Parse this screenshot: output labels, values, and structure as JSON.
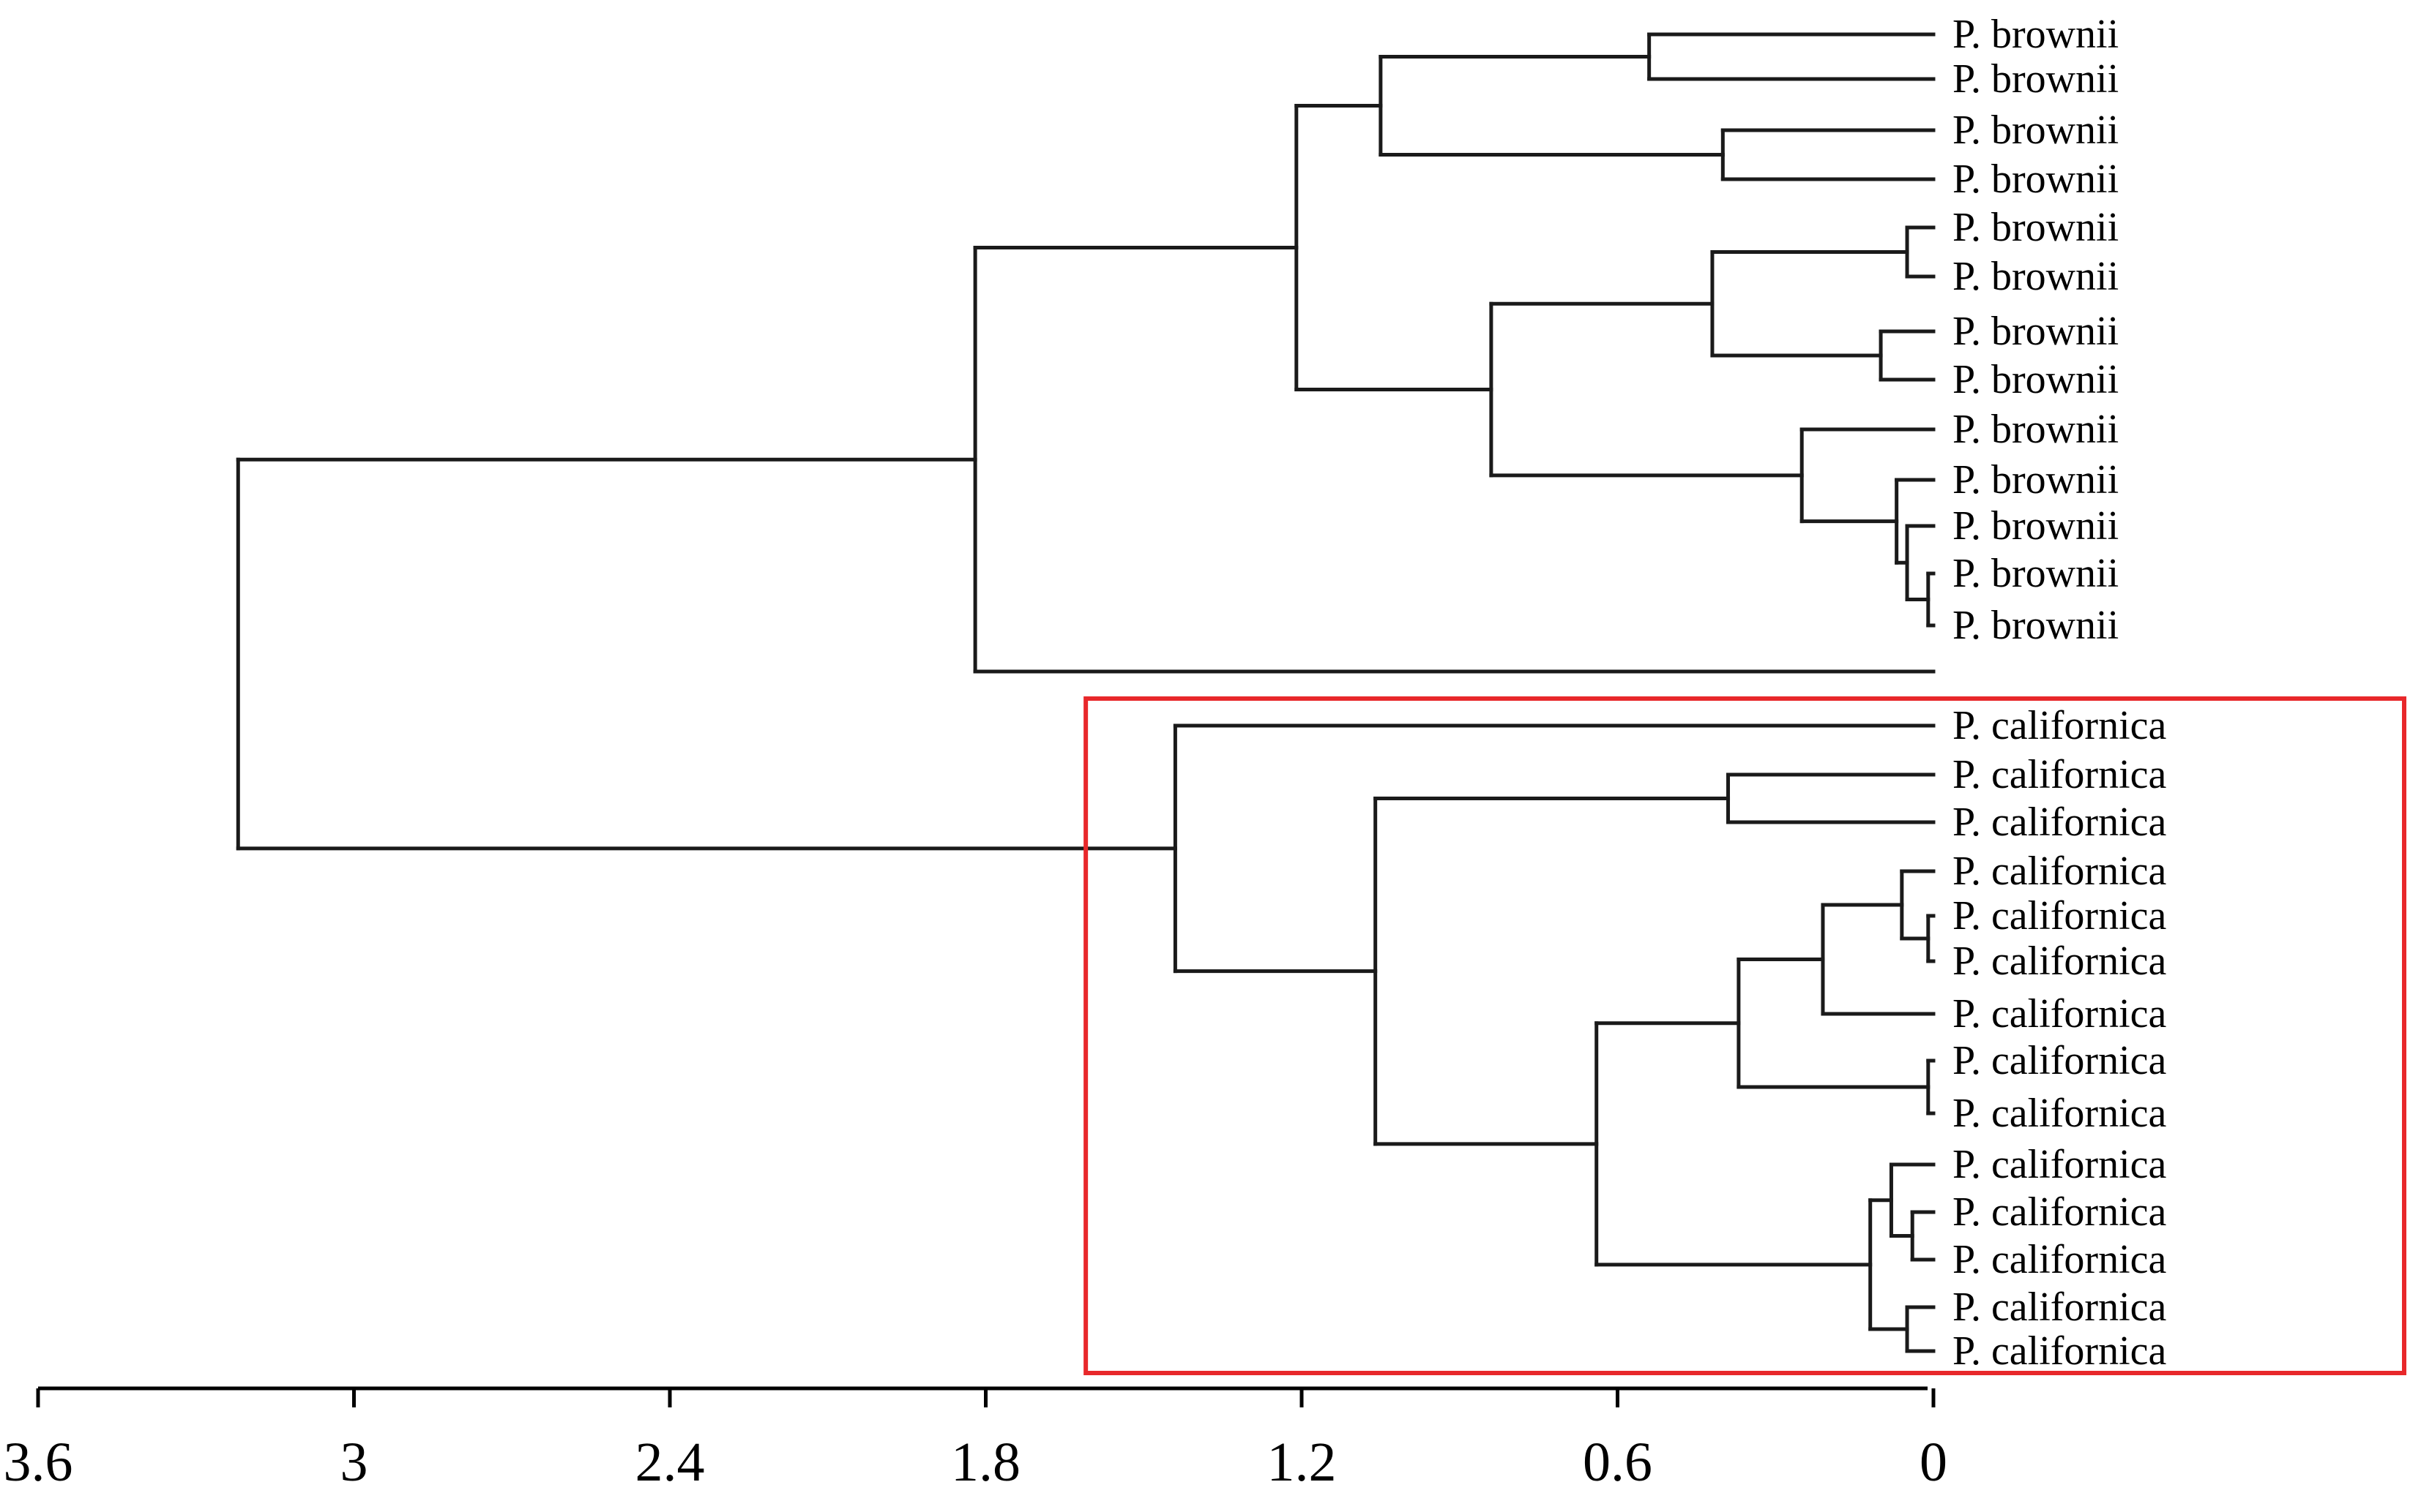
{
  "chart_data": {
    "type": "dendrogram",
    "axis": {
      "ticks": [
        3.6,
        3,
        2.4,
        1.8,
        1.2,
        0.6,
        0
      ],
      "tick_labels": [
        "3.6",
        "3",
        "2.4",
        "1.8",
        "1.2",
        "0.6",
        "0"
      ],
      "range": [
        3.6,
        0
      ]
    },
    "leaves": [
      {
        "id": "b1",
        "label": "P. brownii"
      },
      {
        "id": "b2",
        "label": "P. brownii"
      },
      {
        "id": "b3",
        "label": "P. brownii"
      },
      {
        "id": "b4",
        "label": "P. brownii"
      },
      {
        "id": "b5",
        "label": "P. brownii"
      },
      {
        "id": "b6",
        "label": "P. brownii"
      },
      {
        "id": "b7",
        "label": "P. brownii"
      },
      {
        "id": "b8",
        "label": "P. brownii"
      },
      {
        "id": "b9",
        "label": "P. brownii"
      },
      {
        "id": "b10",
        "label": "P. brownii"
      },
      {
        "id": "b11",
        "label": "P. brownii"
      },
      {
        "id": "b12",
        "label": "P. brownii"
      },
      {
        "id": "b13",
        "label": "P. brownii"
      },
      {
        "id": "x14",
        "label": ""
      },
      {
        "id": "c1",
        "label": "P. californica"
      },
      {
        "id": "c2",
        "label": "P. californica"
      },
      {
        "id": "c3",
        "label": "P. californica"
      },
      {
        "id": "c4",
        "label": "P. californica"
      },
      {
        "id": "c5",
        "label": "P. californica"
      },
      {
        "id": "c6",
        "label": "P. californica"
      },
      {
        "id": "c7",
        "label": "P. californica"
      },
      {
        "id": "c8",
        "label": "P. californica"
      },
      {
        "id": "c9",
        "label": "P. californica"
      },
      {
        "id": "c10",
        "label": "P. californica"
      },
      {
        "id": "c11",
        "label": "P. californica"
      },
      {
        "id": "c12",
        "label": "P. californica"
      },
      {
        "id": "c13",
        "label": "P. californica"
      },
      {
        "id": "c14",
        "label": "P. californica"
      }
    ],
    "merges": [
      {
        "id": "n1",
        "height": 0.54,
        "children": [
          "b1",
          "b2"
        ]
      },
      {
        "id": "n2",
        "height": 0.4,
        "children": [
          "b3",
          "b4"
        ]
      },
      {
        "id": "n3",
        "height": 1.05,
        "children": [
          "n1",
          "n2"
        ]
      },
      {
        "id": "n4",
        "height": 0.05,
        "children": [
          "b5",
          "b6"
        ]
      },
      {
        "id": "n5",
        "height": 0.1,
        "children": [
          "b7",
          "b8"
        ]
      },
      {
        "id": "n6",
        "height": 0.42,
        "children": [
          "n4",
          "n5"
        ]
      },
      {
        "id": "n7",
        "height": 0.01,
        "children": [
          "b12",
          "b13"
        ]
      },
      {
        "id": "n8",
        "height": 0.05,
        "children": [
          "b11",
          "n7"
        ]
      },
      {
        "id": "n9",
        "height": 0.07,
        "children": [
          "b10",
          "n8"
        ]
      },
      {
        "id": "n10",
        "height": 0.25,
        "children": [
          "b9",
          "n9"
        ]
      },
      {
        "id": "n11",
        "height": 0.84,
        "children": [
          "n6",
          "n10"
        ]
      },
      {
        "id": "n12",
        "height": 1.21,
        "children": [
          "n3",
          "n11"
        ]
      },
      {
        "id": "n13",
        "height": 1.82,
        "children": [
          "n12",
          "x14"
        ]
      },
      {
        "id": "m1",
        "height": 0.39,
        "children": [
          "c2",
          "c3"
        ]
      },
      {
        "id": "m2",
        "height": 0.01,
        "children": [
          "c5",
          "c6"
        ]
      },
      {
        "id": "m3",
        "height": 0.06,
        "children": [
          "c4",
          "m2"
        ]
      },
      {
        "id": "m4",
        "height": 0.21,
        "children": [
          "m3",
          "c7"
        ]
      },
      {
        "id": "m5",
        "height": 0.01,
        "children": [
          "c8",
          "c9"
        ]
      },
      {
        "id": "m6",
        "height": 0.37,
        "children": [
          "m4",
          "m5"
        ]
      },
      {
        "id": "m7",
        "height": 0.04,
        "children": [
          "c11",
          "c12"
        ]
      },
      {
        "id": "m8",
        "height": 0.08,
        "children": [
          "c10",
          "m7"
        ]
      },
      {
        "id": "m9",
        "height": 0.05,
        "children": [
          "c13",
          "c14"
        ]
      },
      {
        "id": "m10",
        "height": 0.12,
        "children": [
          "m8",
          "m9"
        ]
      },
      {
        "id": "m11",
        "height": 0.64,
        "children": [
          "m6",
          "m10"
        ]
      },
      {
        "id": "m12",
        "height": 1.06,
        "children": [
          "m1",
          "m11"
        ]
      },
      {
        "id": "m13",
        "height": 1.44,
        "children": [
          "c1",
          "m12"
        ]
      },
      {
        "id": "root",
        "height": 3.22,
        "children": [
          "n13",
          "m13"
        ]
      }
    ],
    "highlight": {
      "color": "#e8282b",
      "covers_leaves": [
        "c1",
        "c14"
      ],
      "from_height": 1.61
    }
  }
}
